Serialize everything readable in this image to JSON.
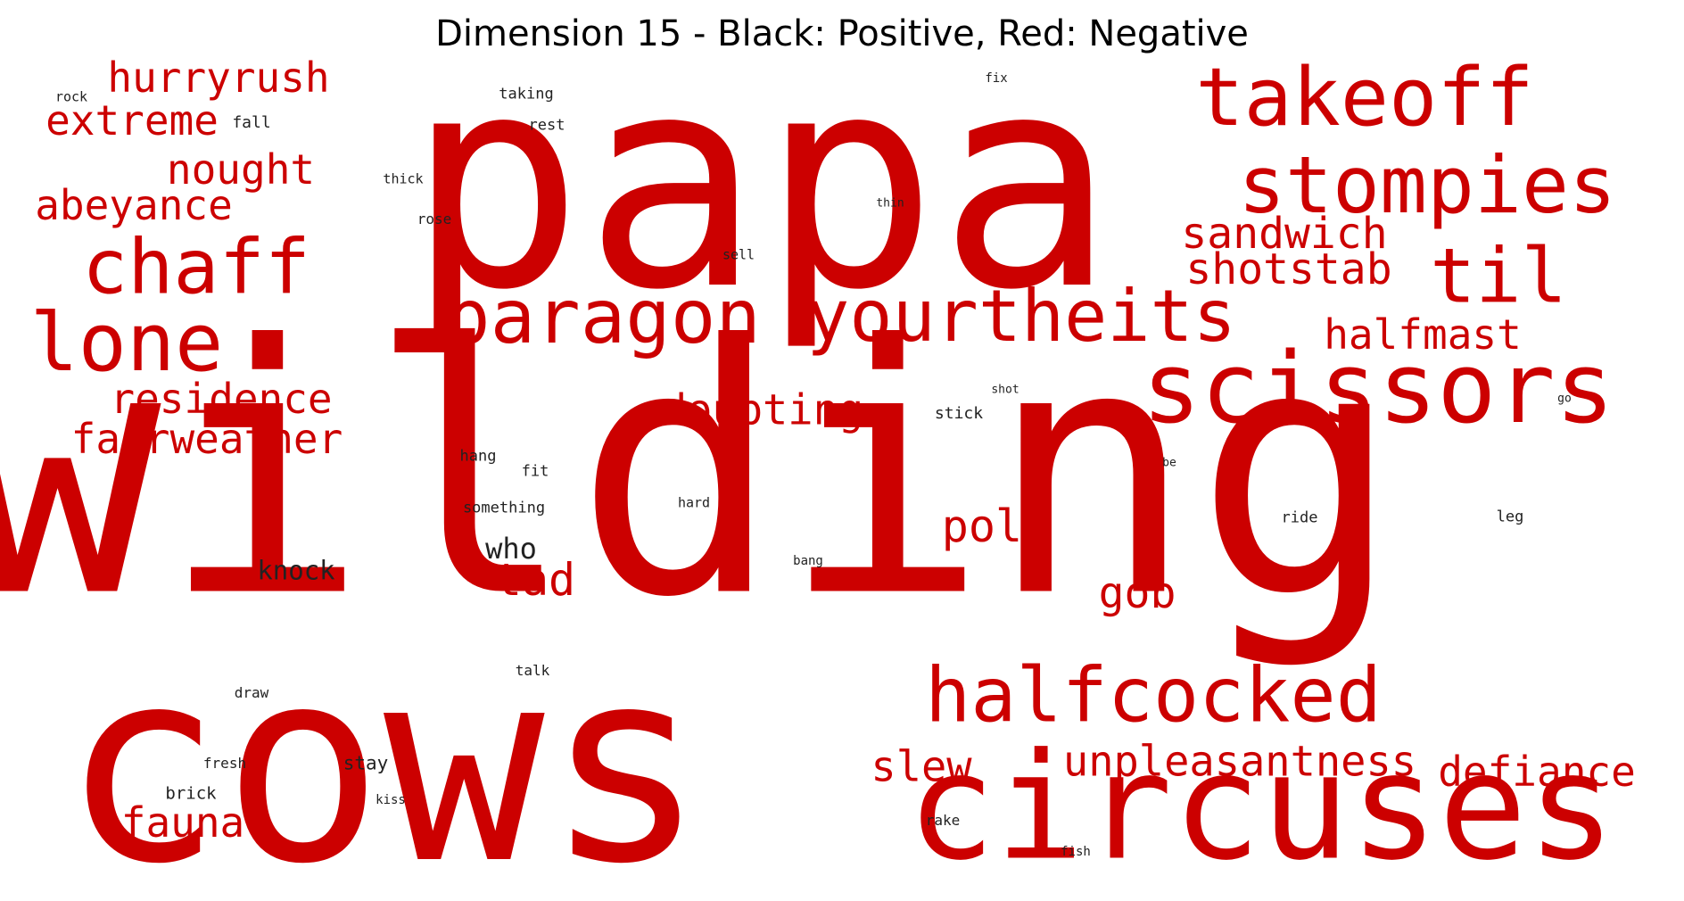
{
  "title": "Dimension 15 - Black: Positive, Red: Negative",
  "colors": {
    "positive": "#222222",
    "negative": "#cc0000"
  },
  "words": [
    {
      "text": "papa",
      "sign": "negative"
    },
    {
      "text": "wilding",
      "sign": "negative"
    },
    {
      "text": "cows",
      "sign": "negative"
    },
    {
      "text": "circuses",
      "sign": "negative"
    },
    {
      "text": "scissors",
      "sign": "negative"
    },
    {
      "text": "halfcocked",
      "sign": "negative"
    },
    {
      "text": "paragon",
      "sign": "negative"
    },
    {
      "text": "yourtheits",
      "sign": "negative"
    },
    {
      "text": "takeoff",
      "sign": "negative"
    },
    {
      "text": "stompies",
      "sign": "negative"
    },
    {
      "text": "til",
      "sign": "negative"
    },
    {
      "text": "lone",
      "sign": "negative"
    },
    {
      "text": "chaff",
      "sign": "negative"
    },
    {
      "text": "sandwich",
      "sign": "negative"
    },
    {
      "text": "shotstab",
      "sign": "negative"
    },
    {
      "text": "halfmast",
      "sign": "negative"
    },
    {
      "text": "hurryrush",
      "sign": "negative"
    },
    {
      "text": "extreme",
      "sign": "negative"
    },
    {
      "text": "nought",
      "sign": "negative"
    },
    {
      "text": "abeyance",
      "sign": "negative"
    },
    {
      "text": "residence",
      "sign": "negative"
    },
    {
      "text": "fairweather",
      "sign": "negative"
    },
    {
      "text": "doubting",
      "sign": "negative"
    },
    {
      "text": "poll",
      "sign": "negative"
    },
    {
      "text": "tad",
      "sign": "negative"
    },
    {
      "text": "gob",
      "sign": "negative"
    },
    {
      "text": "unpleasantness",
      "sign": "negative"
    },
    {
      "text": "slew",
      "sign": "negative"
    },
    {
      "text": "defiance",
      "sign": "negative"
    },
    {
      "text": "fauna",
      "sign": "negative"
    },
    {
      "text": "who",
      "sign": "positive"
    },
    {
      "text": "knock",
      "sign": "positive"
    },
    {
      "text": "stay",
      "sign": "positive"
    },
    {
      "text": "brick",
      "sign": "positive"
    },
    {
      "text": "fresh",
      "sign": "positive"
    },
    {
      "text": "draw",
      "sign": "positive"
    },
    {
      "text": "kiss",
      "sign": "positive"
    },
    {
      "text": "talk",
      "sign": "positive"
    },
    {
      "text": "hang",
      "sign": "positive"
    },
    {
      "text": "fit",
      "sign": "positive"
    },
    {
      "text": "something",
      "sign": "positive"
    },
    {
      "text": "hard",
      "sign": "positive"
    },
    {
      "text": "bang",
      "sign": "positive"
    },
    {
      "text": "stick",
      "sign": "positive"
    },
    {
      "text": "shot",
      "sign": "positive"
    },
    {
      "text": "ride",
      "sign": "positive"
    },
    {
      "text": "leg",
      "sign": "positive"
    },
    {
      "text": "be",
      "sign": "positive"
    },
    {
      "text": "go",
      "sign": "positive"
    },
    {
      "text": "rake",
      "sign": "positive"
    },
    {
      "text": "fish",
      "sign": "positive"
    },
    {
      "text": "taking",
      "sign": "positive"
    },
    {
      "text": "rest",
      "sign": "positive"
    },
    {
      "text": "fix",
      "sign": "positive"
    },
    {
      "text": "thin",
      "sign": "positive"
    },
    {
      "text": "thick",
      "sign": "positive"
    },
    {
      "text": "rose",
      "sign": "positive"
    },
    {
      "text": "sell",
      "sign": "positive"
    },
    {
      "text": "rock",
      "sign": "positive"
    },
    {
      "text": "fall",
      "sign": "positive"
    }
  ]
}
